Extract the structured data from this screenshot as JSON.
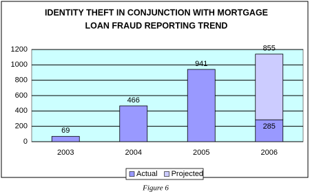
{
  "chart_data": {
    "type": "bar",
    "stacked": true,
    "title": [
      "IDENTITY THEFT IN CONJUNCTION WITH MORTGAGE",
      "LOAN FRAUD REPORTING TREND"
    ],
    "categories": [
      "2003",
      "2004",
      "2005",
      "2006"
    ],
    "series": [
      {
        "name": "Actual",
        "color": "#9999ff",
        "values": [
          69,
          466,
          941,
          285
        ]
      },
      {
        "name": "Projected",
        "color": "#ccccff",
        "values": [
          null,
          null,
          null,
          855
        ]
      }
    ],
    "ylim": [
      0,
      1200
    ],
    "yticks": [
      0,
      200,
      400,
      600,
      800,
      1000,
      1200
    ],
    "grid": true,
    "plot_background": "#ccffff",
    "legend": "bottom"
  },
  "caption": "Figure 6"
}
